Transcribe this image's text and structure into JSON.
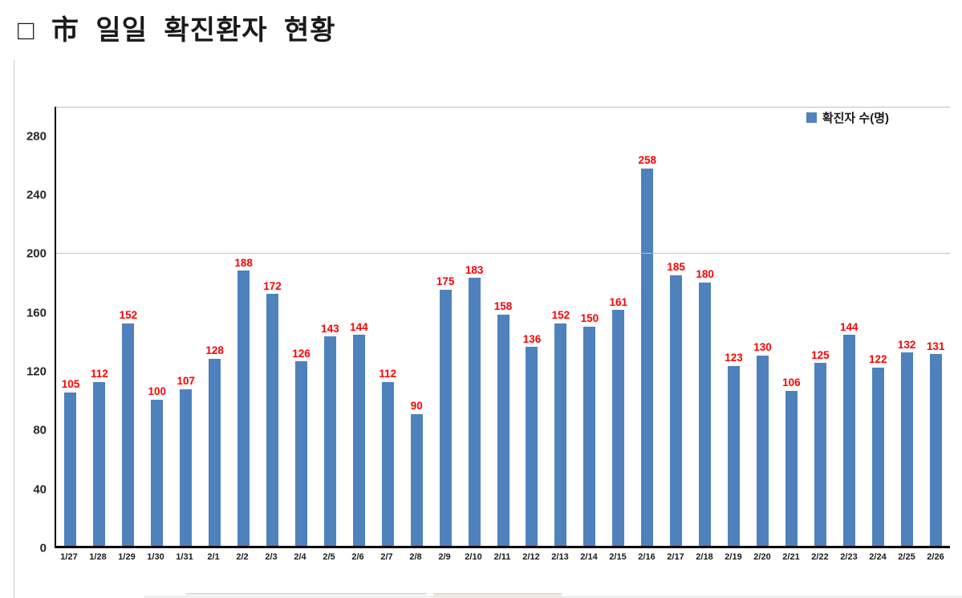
{
  "page": {
    "title": "□  市  일일  확진환자  현황"
  },
  "legend": {
    "label": "확진자 수(명)"
  },
  "chart_data": {
    "type": "bar",
    "title": "市 일일 확진환자 현황",
    "categories": [
      "1/27",
      "1/28",
      "1/29",
      "1/30",
      "1/31",
      "2/1",
      "2/2",
      "2/3",
      "2/4",
      "2/5",
      "2/6",
      "2/7",
      "2/8",
      "2/9",
      "2/10",
      "2/11",
      "2/12",
      "2/13",
      "2/14",
      "2/15",
      "2/16",
      "2/17",
      "2/18",
      "2/19",
      "2/20",
      "2/21",
      "2/22",
      "2/23",
      "2/24",
      "2/25",
      "2/26"
    ],
    "values": [
      105,
      112,
      152,
      100,
      107,
      128,
      188,
      172,
      126,
      143,
      144,
      112,
      90,
      175,
      183,
      158,
      136,
      152,
      150,
      161,
      258,
      185,
      180,
      123,
      130,
      106,
      125,
      144,
      122,
      132,
      131
    ],
    "series_name": "확진자 수(명)",
    "xlabel": "",
    "ylabel": "",
    "yticks": [
      0,
      40,
      80,
      120,
      160,
      200,
      240,
      280
    ],
    "ylim": [
      0,
      300
    ],
    "gridline_values": [
      200,
      300
    ],
    "grid": "partial-horizontal",
    "legend_position": "top-right",
    "bar_color": "#4f81bd",
    "data_label_color": "#ff0000",
    "gridline_color": "#a8c7e0"
  }
}
